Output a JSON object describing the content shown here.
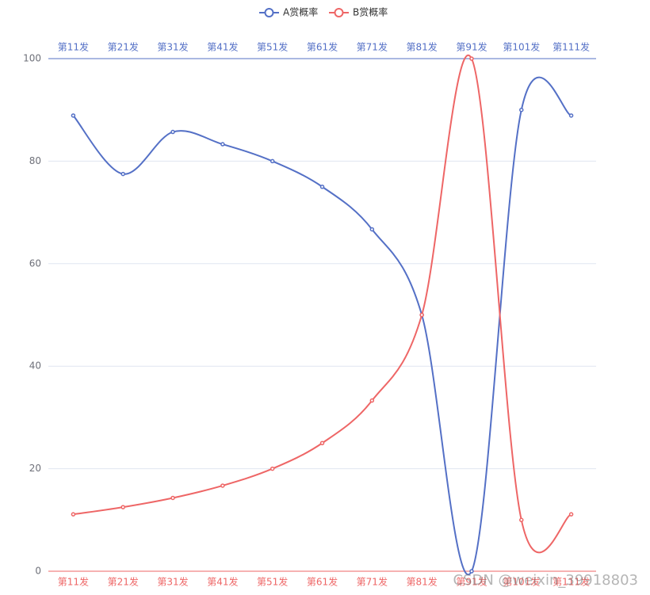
{
  "chart_data": {
    "type": "line",
    "smooth": true,
    "categories": [
      "第11发",
      "第21发",
      "第31发",
      "第41发",
      "第51发",
      "第61发",
      "第71发",
      "第81发",
      "第91发",
      "第101发",
      "第111发"
    ],
    "series": [
      {
        "name": "A赏概率",
        "color": "#5470c6",
        "values": [
          88.9,
          77.5,
          85.7,
          83.3,
          80,
          75,
          66.7,
          50,
          0,
          90,
          88.9
        ]
      },
      {
        "name": "B赏概率",
        "color": "#ee6666",
        "values": [
          11.1,
          12.5,
          14.3,
          16.7,
          20,
          25,
          33.3,
          50,
          100,
          10,
          11.1
        ]
      }
    ],
    "ylim": [
      0,
      100
    ],
    "yticks": [
      0,
      20,
      40,
      60,
      80,
      100
    ],
    "grid": true
  },
  "watermark": "CSDN @weixin_39918803"
}
